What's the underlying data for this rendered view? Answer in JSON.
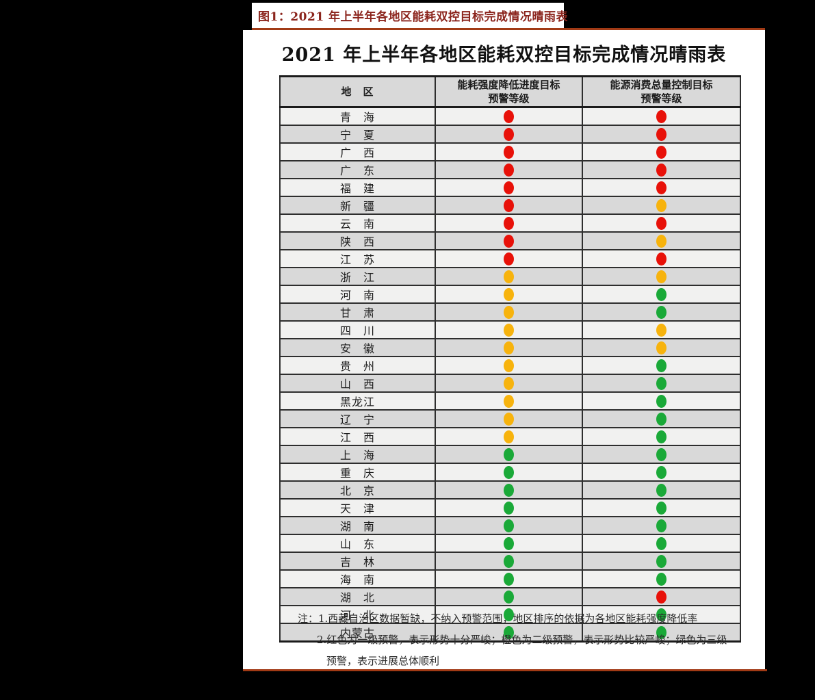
{
  "page": {
    "figure_caption": "图1：2021 年上半年各地区能耗双控目标完成情况晴雨表",
    "caption_color": "#8b241c",
    "rule_color": "#a13a15",
    "background_color": "#000000",
    "panel_color": "#ffffff"
  },
  "table": {
    "title": "2021 年上半年各地区能耗双控目标完成情况晴雨表",
    "columns": [
      {
        "label": "地　区"
      },
      {
        "line1": "能耗强度降低进度目标",
        "line2": "预警等级"
      },
      {
        "line1": "能源消费总量控制目标",
        "line2": "预警等级"
      }
    ],
    "status_colors": {
      "red": "#e81109",
      "yellow": "#f7b30d",
      "green": "#1aa938"
    },
    "row_colors": {
      "odd": "#f1f1f0",
      "even": "#d9d9d9",
      "header": "#d9d9d9"
    },
    "rows": [
      {
        "region": "青　海",
        "intensity": "red",
        "total": "red"
      },
      {
        "region": "宁　夏",
        "intensity": "red",
        "total": "red"
      },
      {
        "region": "广　西",
        "intensity": "red",
        "total": "red"
      },
      {
        "region": "广　东",
        "intensity": "red",
        "total": "red"
      },
      {
        "region": "福　建",
        "intensity": "red",
        "total": "red"
      },
      {
        "region": "新　疆",
        "intensity": "red",
        "total": "yellow"
      },
      {
        "region": "云　南",
        "intensity": "red",
        "total": "red"
      },
      {
        "region": "陕　西",
        "intensity": "red",
        "total": "yellow"
      },
      {
        "region": "江　苏",
        "intensity": "red",
        "total": "red"
      },
      {
        "region": "浙　江",
        "intensity": "yellow",
        "total": "yellow"
      },
      {
        "region": "河　南",
        "intensity": "yellow",
        "total": "green"
      },
      {
        "region": "甘　肃",
        "intensity": "yellow",
        "total": "green"
      },
      {
        "region": "四　川",
        "intensity": "yellow",
        "total": "yellow"
      },
      {
        "region": "安　徽",
        "intensity": "yellow",
        "total": "yellow"
      },
      {
        "region": "贵　州",
        "intensity": "yellow",
        "total": "green"
      },
      {
        "region": "山　西",
        "intensity": "yellow",
        "total": "green"
      },
      {
        "region": "黑龙江",
        "intensity": "yellow",
        "total": "green"
      },
      {
        "region": "辽　宁",
        "intensity": "yellow",
        "total": "green"
      },
      {
        "region": "江　西",
        "intensity": "yellow",
        "total": "green"
      },
      {
        "region": "上　海",
        "intensity": "green",
        "total": "green"
      },
      {
        "region": "重　庆",
        "intensity": "green",
        "total": "green"
      },
      {
        "region": "北　京",
        "intensity": "green",
        "total": "green"
      },
      {
        "region": "天　津",
        "intensity": "green",
        "total": "green"
      },
      {
        "region": "湖　南",
        "intensity": "green",
        "total": "green"
      },
      {
        "region": "山　东",
        "intensity": "green",
        "total": "green"
      },
      {
        "region": "吉　林",
        "intensity": "green",
        "total": "green"
      },
      {
        "region": "海　南",
        "intensity": "green",
        "total": "green"
      },
      {
        "region": "湖　北",
        "intensity": "green",
        "total": "red"
      },
      {
        "region": "河　北",
        "intensity": "green",
        "total": "green"
      },
      {
        "region": "内蒙古",
        "intensity": "green",
        "total": "green"
      }
    ],
    "notes": [
      "注：1.西藏自治区数据暂缺，不纳入预警范围，地区排序的依据为各地区能耗强度降低率",
      "2.红色为一级预警，表示形势十分严峻；橙色为二级预警，表示形势比较严峻；绿色为三级",
      "预警，表示进展总体顺利"
    ]
  }
}
